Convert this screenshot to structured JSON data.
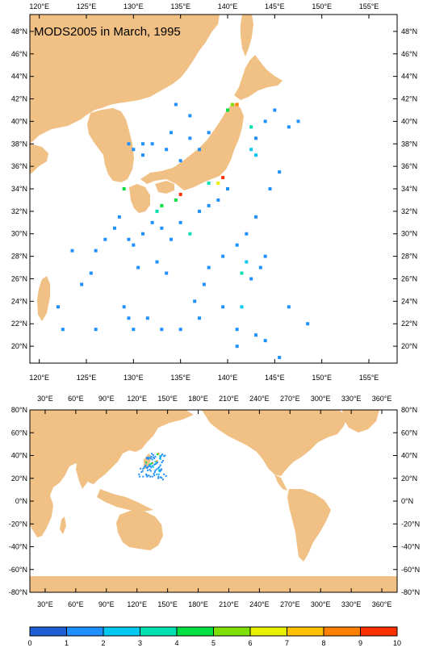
{
  "title": "MODS2005 in March, 1995",
  "colors": {
    "land": "#f0c084",
    "ocean": "#ffffff",
    "frame": "#000000",
    "scale": [
      "#1f5fd6",
      "#1e90ff",
      "#00c8f0",
      "#00e0b0",
      "#00e040",
      "#7ee000",
      "#e8f000",
      "#ffc000",
      "#ff8000",
      "#ff3000"
    ]
  },
  "top_map": {
    "x_labels": [
      "120°E",
      "125°E",
      "130°E",
      "135°E",
      "140°E",
      "145°E",
      "150°E",
      "155°E"
    ],
    "y_labels": [
      "48°N",
      "46°N",
      "44°N",
      "42°N",
      "40°N",
      "38°N",
      "36°N",
      "34°N",
      "32°N",
      "30°N",
      "28°N",
      "26°N",
      "24°N",
      "22°N",
      "20°N"
    ],
    "lon_range": [
      119,
      158
    ],
    "lat_range": [
      18.5,
      49.5
    ]
  },
  "bottom_map": {
    "x_labels": [
      "30°E",
      "60°E",
      "90°E",
      "120°E",
      "150°E",
      "180°E",
      "210°E",
      "240°E",
      "270°E",
      "300°E",
      "330°E",
      "360°E"
    ],
    "y_labels": [
      "80°N",
      "60°N",
      "40°N",
      "20°N",
      "0°N",
      "-20°N",
      "-40°N",
      "-60°N",
      "-80°N"
    ],
    "lon_range": [
      15,
      375
    ],
    "lat_range": [
      -80,
      80
    ]
  },
  "colorbar": {
    "labels": [
      "0",
      "1",
      "2",
      "3",
      "4",
      "5",
      "6",
      "7",
      "8",
      "9",
      "10"
    ]
  },
  "chart_data": {
    "type": "heatmap",
    "title": "MODS2005 in March, 1995",
    "value_range": [
      0,
      10
    ],
    "observations": [
      {
        "lon": 140.5,
        "lat": 41.5,
        "v": 5
      },
      {
        "lon": 141.0,
        "lat": 41.5,
        "v": 8
      },
      {
        "lon": 140.0,
        "lat": 41.0,
        "v": 4
      },
      {
        "lon": 139.5,
        "lat": 35.0,
        "v": 9
      },
      {
        "lon": 139.0,
        "lat": 34.5,
        "v": 6
      },
      {
        "lon": 135.0,
        "lat": 33.5,
        "v": 9
      },
      {
        "lon": 134.5,
        "lat": 33.0,
        "v": 4
      },
      {
        "lon": 133.0,
        "lat": 32.5,
        "v": 4
      },
      {
        "lon": 132.5,
        "lat": 32.0,
        "v": 3
      },
      {
        "lon": 129.0,
        "lat": 34.0,
        "v": 4
      },
      {
        "lon": 142.5,
        "lat": 39.5,
        "v": 3
      },
      {
        "lon": 142.5,
        "lat": 37.5,
        "v": 2
      },
      {
        "lon": 143.0,
        "lat": 37.0,
        "v": 2
      },
      {
        "lon": 138.0,
        "lat": 34.5,
        "v": 3
      },
      {
        "lon": 136.0,
        "lat": 30.0,
        "v": 3
      },
      {
        "lon": 141.5,
        "lat": 23.5,
        "v": 2
      },
      {
        "lon": 141.5,
        "lat": 26.5,
        "v": 3
      },
      {
        "lon": 142.0,
        "lat": 27.5,
        "v": 2
      },
      {
        "lon": 143.0,
        "lat": 38.5,
        "v": 1
      },
      {
        "lon": 144.0,
        "lat": 40.0,
        "v": 1
      },
      {
        "lon": 145.0,
        "lat": 41.0,
        "v": 1
      },
      {
        "lon": 146.5,
        "lat": 39.5,
        "v": 1
      },
      {
        "lon": 147.5,
        "lat": 40.0,
        "v": 1
      },
      {
        "lon": 136.0,
        "lat": 40.5,
        "v": 1
      },
      {
        "lon": 134.0,
        "lat": 39.0,
        "v": 1
      },
      {
        "lon": 132.0,
        "lat": 38.0,
        "v": 1
      },
      {
        "lon": 131.0,
        "lat": 37.0,
        "v": 1
      },
      {
        "lon": 133.5,
        "lat": 37.5,
        "v": 1
      },
      {
        "lon": 136.0,
        "lat": 38.5,
        "v": 1
      },
      {
        "lon": 138.0,
        "lat": 39.0,
        "v": 1
      },
      {
        "lon": 129.5,
        "lat": 38.0,
        "v": 1
      },
      {
        "lon": 130.0,
        "lat": 37.5,
        "v": 1
      },
      {
        "lon": 131.0,
        "lat": 38.0,
        "v": 1
      },
      {
        "lon": 137.0,
        "lat": 37.5,
        "v": 1
      },
      {
        "lon": 135.0,
        "lat": 36.5,
        "v": 1
      },
      {
        "lon": 134.5,
        "lat": 41.5,
        "v": 1
      },
      {
        "lon": 129.5,
        "lat": 29.5,
        "v": 1
      },
      {
        "lon": 130.0,
        "lat": 29.0,
        "v": 1
      },
      {
        "lon": 131.0,
        "lat": 30.0,
        "v": 1
      },
      {
        "lon": 132.0,
        "lat": 31.0,
        "v": 1
      },
      {
        "lon": 133.0,
        "lat": 30.5,
        "v": 1
      },
      {
        "lon": 134.0,
        "lat": 29.5,
        "v": 1
      },
      {
        "lon": 135.0,
        "lat": 31.0,
        "v": 1
      },
      {
        "lon": 137.0,
        "lat": 32.0,
        "v": 1
      },
      {
        "lon": 138.0,
        "lat": 32.5,
        "v": 1
      },
      {
        "lon": 139.0,
        "lat": 33.0,
        "v": 1
      },
      {
        "lon": 140.0,
        "lat": 34.0,
        "v": 1
      },
      {
        "lon": 128.5,
        "lat": 31.5,
        "v": 1
      },
      {
        "lon": 128.0,
        "lat": 30.5,
        "v": 1
      },
      {
        "lon": 127.0,
        "lat": 29.5,
        "v": 1
      },
      {
        "lon": 126.0,
        "lat": 28.5,
        "v": 1
      },
      {
        "lon": 123.5,
        "lat": 28.5,
        "v": 1
      },
      {
        "lon": 124.5,
        "lat": 25.5,
        "v": 1
      },
      {
        "lon": 125.5,
        "lat": 26.5,
        "v": 1
      },
      {
        "lon": 122.0,
        "lat": 23.5,
        "v": 1
      },
      {
        "lon": 122.5,
        "lat": 21.5,
        "v": 1
      },
      {
        "lon": 126.0,
        "lat": 21.5,
        "v": 1
      },
      {
        "lon": 129.0,
        "lat": 23.5,
        "v": 1
      },
      {
        "lon": 129.5,
        "lat": 22.5,
        "v": 1
      },
      {
        "lon": 130.0,
        "lat": 21.5,
        "v": 1
      },
      {
        "lon": 131.5,
        "lat": 22.5,
        "v": 1
      },
      {
        "lon": 133.0,
        "lat": 21.5,
        "v": 1
      },
      {
        "lon": 135.0,
        "lat": 21.5,
        "v": 1
      },
      {
        "lon": 137.0,
        "lat": 22.5,
        "v": 1
      },
      {
        "lon": 139.5,
        "lat": 23.5,
        "v": 1
      },
      {
        "lon": 141.0,
        "lat": 20.0,
        "v": 1
      },
      {
        "lon": 141.0,
        "lat": 21.5,
        "v": 1
      },
      {
        "lon": 143.0,
        "lat": 21.0,
        "v": 1
      },
      {
        "lon": 144.0,
        "lat": 20.5,
        "v": 1
      },
      {
        "lon": 145.5,
        "lat": 19.0,
        "v": 1
      },
      {
        "lon": 146.5,
        "lat": 23.5,
        "v": 1
      },
      {
        "lon": 148.5,
        "lat": 22.0,
        "v": 1
      },
      {
        "lon": 142.5,
        "lat": 26.0,
        "v": 1
      },
      {
        "lon": 143.5,
        "lat": 27.0,
        "v": 1
      },
      {
        "lon": 144.0,
        "lat": 28.0,
        "v": 1
      },
      {
        "lon": 145.5,
        "lat": 35.5,
        "v": 1
      },
      {
        "lon": 144.5,
        "lat": 34.0,
        "v": 1
      },
      {
        "lon": 143.0,
        "lat": 31.5,
        "v": 1
      },
      {
        "lon": 142.0,
        "lat": 30.0,
        "v": 1
      },
      {
        "lon": 141.0,
        "lat": 29.0,
        "v": 1
      },
      {
        "lon": 139.5,
        "lat": 28.0,
        "v": 1
      },
      {
        "lon": 138.0,
        "lat": 27.0,
        "v": 1
      },
      {
        "lon": 137.5,
        "lat": 25.5,
        "v": 1
      },
      {
        "lon": 136.5,
        "lat": 24.0,
        "v": 1
      },
      {
        "lon": 133.5,
        "lat": 26.5,
        "v": 1
      },
      {
        "lon": 132.5,
        "lat": 27.5,
        "v": 1
      },
      {
        "lon": 130.5,
        "lat": 27.0,
        "v": 1
      }
    ]
  }
}
